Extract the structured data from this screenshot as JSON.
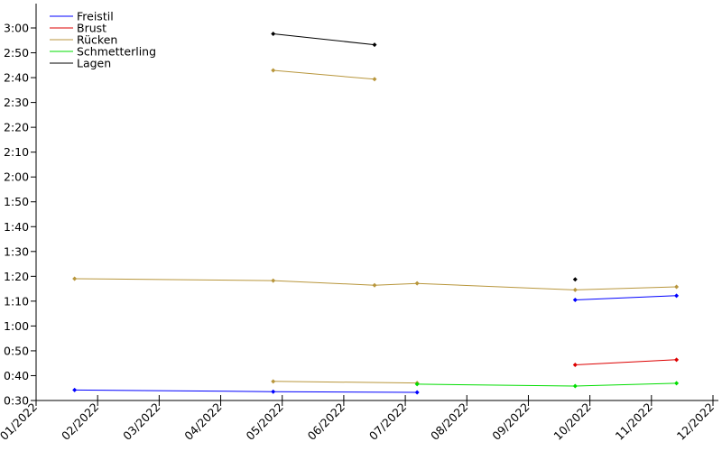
{
  "chart_data": {
    "type": "line",
    "title": "",
    "xlabel": "",
    "ylabel": "",
    "x_tick_labels": [
      "01/2022",
      "02/2022",
      "03/2022",
      "04/2022",
      "05/2022",
      "06/2022",
      "07/2022",
      "08/2022",
      "09/2022",
      "10/2022",
      "11/2022",
      "12/2022"
    ],
    "y_tick_labels": [
      "0:30",
      "0:40",
      "0:50",
      "1:00",
      "1:10",
      "1:20",
      "1:30",
      "1:40",
      "1:50",
      "2:00",
      "2:10",
      "2:20",
      "2:30",
      "2:40",
      "2:50",
      "3:00"
    ],
    "xlim": [
      "2022-01-01",
      "2022-12-01"
    ],
    "ylim_seconds": [
      30,
      190
    ],
    "grid": false,
    "legend_position": "top-left",
    "series": [
      {
        "name": "Freistil",
        "color": "#0000ff",
        "segments": [
          [
            [
              "2022-01-20",
              "0:34.5"
            ],
            [
              "2022-04-28",
              "0:33.8"
            ],
            [
              "2022-07-08",
              "0:33.5"
            ]
          ],
          [
            [
              "2022-09-24",
              "1:13.2"
            ],
            [
              "2022-11-13",
              "1:15.0"
            ]
          ]
        ]
      },
      {
        "name": "Brust",
        "color": "#dd0000",
        "segments": [
          [
            [
              "2022-09-24",
              "0:45.3"
            ],
            [
              "2022-11-13",
              "0:47.5"
            ]
          ]
        ]
      },
      {
        "name": "Rücken",
        "color": "#b8963c",
        "segments": [
          [
            [
              "2022-01-20",
              "1:22.3"
            ],
            [
              "2022-04-28",
              "1:21.5"
            ],
            [
              "2022-06-17",
              "1:19.5"
            ],
            [
              "2022-07-08",
              "1:20.3"
            ],
            [
              "2022-09-24",
              "1:17.5"
            ],
            [
              "2022-11-13",
              "1:18.8"
            ]
          ],
          [
            [
              "2022-04-28",
              "2:51.8"
            ],
            [
              "2022-06-17",
              "2:48.0"
            ]
          ],
          [
            [
              "2022-04-28",
              "0:38.2"
            ],
            [
              "2022-07-08",
              "0:37.5"
            ]
          ]
        ]
      },
      {
        "name": "Schmetterling",
        "color": "#00dd00",
        "segments": [
          [
            [
              "2022-07-08",
              "0:37.0"
            ],
            [
              "2022-09-24",
              "0:36.2"
            ],
            [
              "2022-11-13",
              "0:37.4"
            ]
          ]
        ]
      },
      {
        "name": "Lagen",
        "color": "#000000",
        "segments": [
          [
            [
              "2022-04-28",
              "3:07.5"
            ],
            [
              "2022-06-17",
              "3:02.8"
            ]
          ],
          [
            [
              "2022-09-24",
              "1:22.0"
            ]
          ]
        ]
      }
    ]
  }
}
